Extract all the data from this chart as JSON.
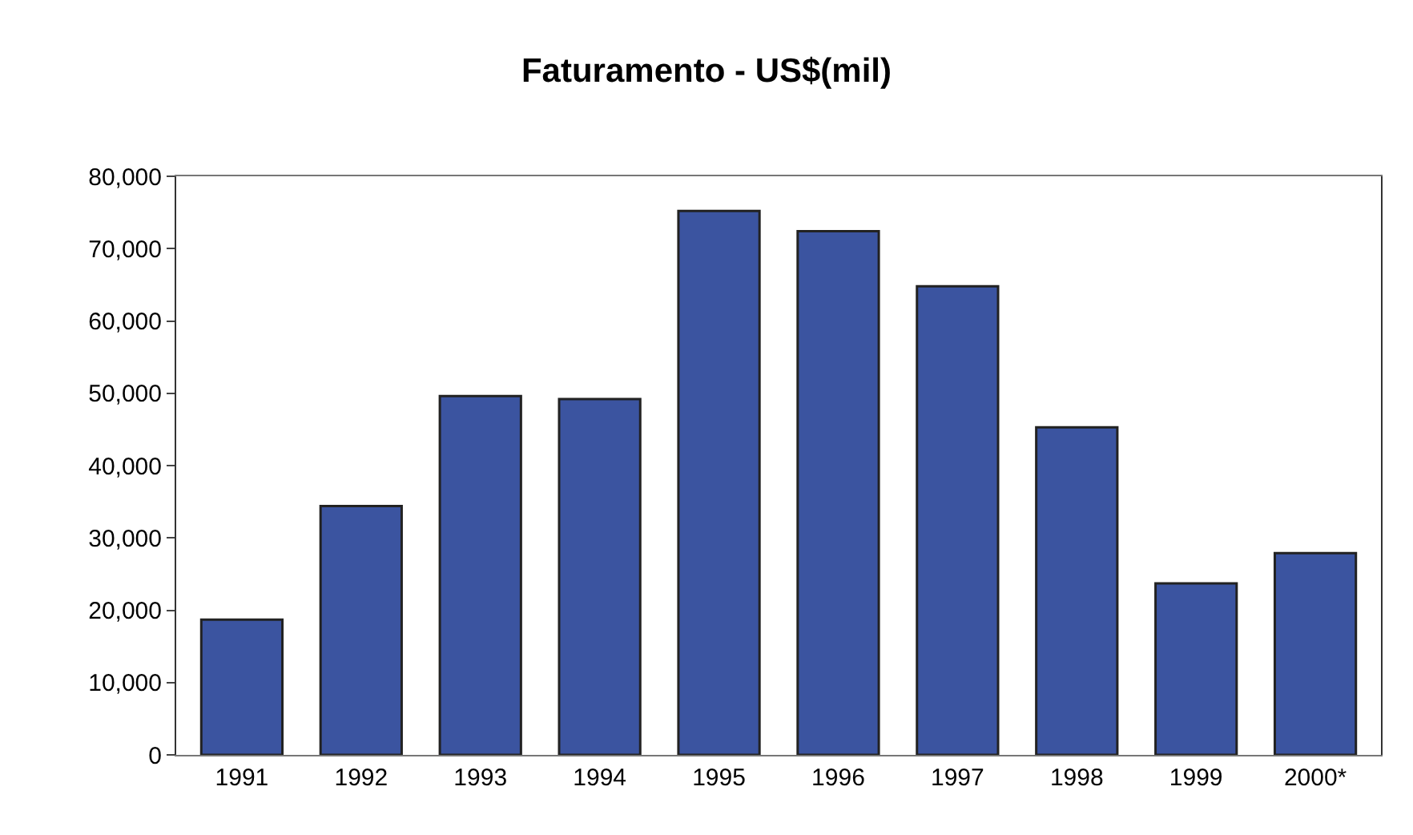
{
  "chart_data": {
    "type": "bar",
    "title": "Faturamento - US$(mil)",
    "categories": [
      "1991",
      "1992",
      "1993",
      "1994",
      "1995",
      "1996",
      "1997",
      "1998",
      "1999",
      "2000*"
    ],
    "values": [
      18700,
      34400,
      49600,
      49200,
      75200,
      72400,
      64800,
      45300,
      23700,
      27900
    ],
    "color": "#3b54a0",
    "ylim": [
      0,
      80000
    ],
    "yticks": [
      {
        "value": 0,
        "label": "0"
      },
      {
        "value": 10000,
        "label": "10,000"
      },
      {
        "value": 20000,
        "label": "20,000"
      },
      {
        "value": 30000,
        "label": "30,000"
      },
      {
        "value": 40000,
        "label": "40,000"
      },
      {
        "value": 50000,
        "label": "50,000"
      },
      {
        "value": 60000,
        "label": "60,000"
      },
      {
        "value": 70000,
        "label": "70,000"
      },
      {
        "value": 80000,
        "label": "80,000"
      }
    ],
    "tick_labels": "xy"
  }
}
